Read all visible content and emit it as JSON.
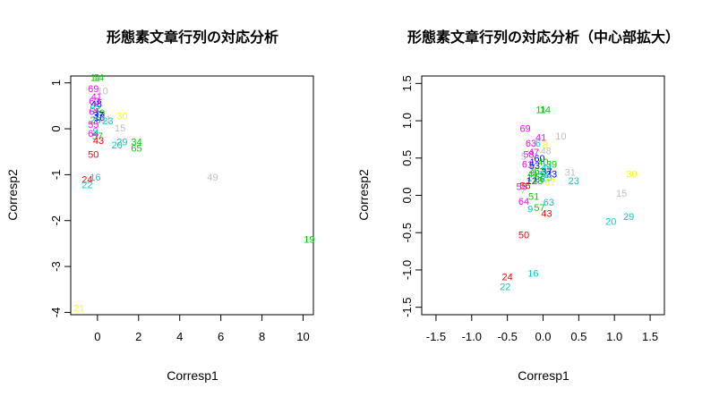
{
  "chart_data": [
    {
      "type": "scatter",
      "title": "形態素文章行列の対応分析",
      "xlabel": "Corresp1",
      "ylabel": "Corresp2",
      "xlim": [
        -1.3,
        10.5
      ],
      "ylim": [
        -4.05,
        1.15
      ],
      "xticks": [
        0,
        2,
        4,
        6,
        8,
        10
      ],
      "yticks": [
        -4,
        -3,
        -2,
        -1,
        0,
        1
      ],
      "xtick_labels": [
        "0",
        "2",
        "4",
        "6",
        "8",
        "10"
      ],
      "ytick_labels": [
        "-4",
        "-3",
        "-2",
        "-1",
        "0",
        "1"
      ],
      "points": [
        {
          "label": "11",
          "x": -0.1,
          "y": 1.12,
          "color": "#00cc00"
        },
        {
          "label": "14",
          "x": 0.05,
          "y": 1.12,
          "color": "#00cc00"
        },
        {
          "label": "69",
          "x": -0.2,
          "y": 0.88,
          "color": "#ff00ff"
        },
        {
          "label": "10",
          "x": 0.25,
          "y": 0.83,
          "color": "#bebebe"
        },
        {
          "label": "41",
          "x": -0.05,
          "y": 0.7,
          "color": "#ff00ff"
        },
        {
          "label": "63",
          "x": -0.15,
          "y": 0.6,
          "color": "#ff00ff"
        },
        {
          "label": "48",
          "x": -0.05,
          "y": 0.55,
          "color": "#0000ff"
        },
        {
          "label": "52",
          "x": -0.1,
          "y": 0.45,
          "color": "#00cccc"
        },
        {
          "label": "61",
          "x": -0.15,
          "y": 0.38,
          "color": "#ff00ff"
        },
        {
          "label": "39",
          "x": 0.1,
          "y": 0.35,
          "color": "#00cc00"
        },
        {
          "label": "37",
          "x": 0.05,
          "y": 0.3,
          "color": "#0000ff"
        },
        {
          "label": "18",
          "x": 0.1,
          "y": 0.25,
          "color": "#0000ff"
        },
        {
          "label": "26",
          "x": -0.1,
          "y": 0.2,
          "color": "#00cc00"
        },
        {
          "label": "31",
          "x": 0.4,
          "y": 0.22,
          "color": "#bebebe"
        },
        {
          "label": "23",
          "x": 0.5,
          "y": 0.18,
          "color": "#00cccc"
        },
        {
          "label": "30",
          "x": 1.2,
          "y": 0.28,
          "color": "#ffff00"
        },
        {
          "label": "55",
          "x": -0.2,
          "y": 0.1,
          "color": "#ff00ff"
        },
        {
          "label": "64",
          "x": -0.2,
          "y": -0.1,
          "color": "#ff00ff"
        },
        {
          "label": "9",
          "x": -0.1,
          "y": -0.05,
          "color": "#00cccc"
        },
        {
          "label": "57",
          "x": 0.0,
          "y": -0.15,
          "color": "#00cc00"
        },
        {
          "label": "43",
          "x": 0.05,
          "y": -0.25,
          "color": "#ff0000"
        },
        {
          "label": "15",
          "x": 1.1,
          "y": 0.02,
          "color": "#bebebe"
        },
        {
          "label": "20",
          "x": 0.95,
          "y": -0.35,
          "color": "#00cccc"
        },
        {
          "label": "29",
          "x": 1.2,
          "y": -0.28,
          "color": "#00cccc"
        },
        {
          "label": "34",
          "x": 1.9,
          "y": -0.28,
          "color": "#00cc00"
        },
        {
          "label": "65",
          "x": 1.9,
          "y": -0.42,
          "color": "#00cc00"
        },
        {
          "label": "50",
          "x": -0.2,
          "y": -0.55,
          "color": "#ff0000"
        },
        {
          "label": "24",
          "x": -0.5,
          "y": -1.1,
          "color": "#ff0000"
        },
        {
          "label": "16",
          "x": -0.1,
          "y": -1.05,
          "color": "#00cccc"
        },
        {
          "label": "22",
          "x": -0.5,
          "y": -1.22,
          "color": "#00cccc"
        },
        {
          "label": "49",
          "x": 5.6,
          "y": -1.05,
          "color": "#bebebe"
        },
        {
          "label": "19",
          "x": 10.3,
          "y": -2.4,
          "color": "#00cc00"
        },
        {
          "label": "21",
          "x": -0.9,
          "y": -3.9,
          "color": "#ffff00"
        }
      ]
    },
    {
      "type": "scatter",
      "title": "形態素文章行列の対応分析（中心部拡大）",
      "xlabel": "Corresp1",
      "ylabel": "Corresp2",
      "xlim": [
        -1.7,
        1.7
      ],
      "ylim": [
        -1.6,
        1.6
      ],
      "xticks": [
        -1.5,
        -1.0,
        -0.5,
        0.0,
        0.5,
        1.0,
        1.5
      ],
      "yticks": [
        -1.5,
        -1.0,
        -0.5,
        0.0,
        0.5,
        1.0,
        1.5
      ],
      "xtick_labels": [
        "-1.5",
        "-1.0",
        "-0.5",
        "0.0",
        "0.5",
        "1.0",
        "1.5"
      ],
      "ytick_labels": [
        "-1.5",
        "-1.0",
        "-0.5",
        "0.0",
        "0.5",
        "1.0",
        "1.5"
      ],
      "points": [
        {
          "label": "11",
          "x": -0.03,
          "y": 1.15,
          "color": "#00cc00"
        },
        {
          "label": "14",
          "x": 0.03,
          "y": 1.15,
          "color": "#00cc00"
        },
        {
          "label": "69",
          "x": -0.25,
          "y": 0.9,
          "color": "#ff00ff"
        },
        {
          "label": "10",
          "x": 0.25,
          "y": 0.8,
          "color": "#bebebe"
        },
        {
          "label": "41",
          "x": -0.03,
          "y": 0.78,
          "color": "#ff00ff"
        },
        {
          "label": "63",
          "x": -0.17,
          "y": 0.7,
          "color": "#ff00ff"
        },
        {
          "label": "6",
          "x": -0.07,
          "y": 0.7,
          "color": "#00cccc"
        },
        {
          "label": "8",
          "x": 0.03,
          "y": 0.68,
          "color": "#ffff00"
        },
        {
          "label": "48",
          "x": 0.04,
          "y": 0.6,
          "color": "#bebebe"
        },
        {
          "label": "47",
          "x": -0.13,
          "y": 0.58,
          "color": "#ff00ff"
        },
        {
          "label": "58",
          "x": -0.2,
          "y": 0.55,
          "color": "#ff00ff"
        },
        {
          "label": "60",
          "x": -0.05,
          "y": 0.5,
          "color": "#0000ff"
        },
        {
          "label": "5",
          "x": -0.27,
          "y": 0.53,
          "color": "#bebebe"
        },
        {
          "label": "40",
          "x": 0.0,
          "y": 0.45,
          "color": "#00cc00"
        },
        {
          "label": "61",
          "x": -0.22,
          "y": 0.42,
          "color": "#ff00ff"
        },
        {
          "label": "1",
          "x": -0.15,
          "y": 0.45,
          "color": "#0000ff"
        },
        {
          "label": "53",
          "x": -0.12,
          "y": 0.4,
          "color": "#0000ff"
        },
        {
          "label": "39",
          "x": 0.12,
          "y": 0.42,
          "color": "#00cc00"
        },
        {
          "label": "44",
          "x": 0.05,
          "y": 0.38,
          "color": "#00cccc"
        },
        {
          "label": "3",
          "x": -0.16,
          "y": 0.34,
          "color": "#00cc00"
        },
        {
          "label": "62",
          "x": -0.05,
          "y": 0.33,
          "color": "#00cc00"
        },
        {
          "label": "37",
          "x": 0.05,
          "y": 0.32,
          "color": "#0000ff"
        },
        {
          "label": "4",
          "x": -0.18,
          "y": 0.29,
          "color": "#00cc00"
        },
        {
          "label": "45",
          "x": -0.08,
          "y": 0.28,
          "color": "#00cc00"
        },
        {
          "label": "36",
          "x": 0.0,
          "y": 0.28,
          "color": "#00cccc"
        },
        {
          "label": "33",
          "x": 0.12,
          "y": 0.29,
          "color": "#0000ff"
        },
        {
          "label": "17",
          "x": -0.15,
          "y": 0.24,
          "color": "#00cc00"
        },
        {
          "label": "26",
          "x": -0.05,
          "y": 0.22,
          "color": "#00cc00"
        },
        {
          "label": "25",
          "x": 0.05,
          "y": 0.24,
          "color": "#00cccc"
        },
        {
          "label": "12",
          "x": -0.16,
          "y": 0.2,
          "color": "#0000ff"
        },
        {
          "label": "18",
          "x": -0.08,
          "y": 0.2,
          "color": "#00cc00"
        },
        {
          "label": "67",
          "x": 0.1,
          "y": 0.18,
          "color": "#ffff00"
        },
        {
          "label": "31",
          "x": 0.38,
          "y": 0.31,
          "color": "#bebebe"
        },
        {
          "label": "23",
          "x": 0.43,
          "y": 0.2,
          "color": "#00cccc"
        },
        {
          "label": "30",
          "x": 1.24,
          "y": 0.29,
          "color": "#ffff00"
        },
        {
          "label": "55",
          "x": -0.3,
          "y": 0.12,
          "color": "#ff00ff"
        },
        {
          "label": "56",
          "x": -0.25,
          "y": 0.13,
          "color": "#ff0000"
        },
        {
          "label": "7",
          "x": -0.28,
          "y": 0.07,
          "color": "#bebebe"
        },
        {
          "label": "51",
          "x": -0.13,
          "y": -0.01,
          "color": "#00cc00"
        },
        {
          "label": "63",
          "x": 0.08,
          "y": -0.09,
          "color": "#00cccc"
        },
        {
          "label": "64",
          "x": -0.27,
          "y": -0.08,
          "color": "#ff00ff"
        },
        {
          "label": "9",
          "x": -0.18,
          "y": -0.18,
          "color": "#00cccc"
        },
        {
          "label": "57",
          "x": -0.05,
          "y": -0.16,
          "color": "#00cc00"
        },
        {
          "label": "43",
          "x": 0.05,
          "y": -0.24,
          "color": "#ff0000"
        },
        {
          "label": "15",
          "x": 1.1,
          "y": 0.03,
          "color": "#bebebe"
        },
        {
          "label": "29",
          "x": 1.2,
          "y": -0.28,
          "color": "#00cccc"
        },
        {
          "label": "20",
          "x": 0.95,
          "y": -0.35,
          "color": "#00cccc"
        },
        {
          "label": "50",
          "x": -0.27,
          "y": -0.53,
          "color": "#ff0000"
        },
        {
          "label": "24",
          "x": -0.5,
          "y": -1.09,
          "color": "#ff0000"
        },
        {
          "label": "16",
          "x": -0.14,
          "y": -1.04,
          "color": "#00cccc"
        },
        {
          "label": "22",
          "x": -0.53,
          "y": -1.22,
          "color": "#00cccc"
        }
      ]
    }
  ]
}
